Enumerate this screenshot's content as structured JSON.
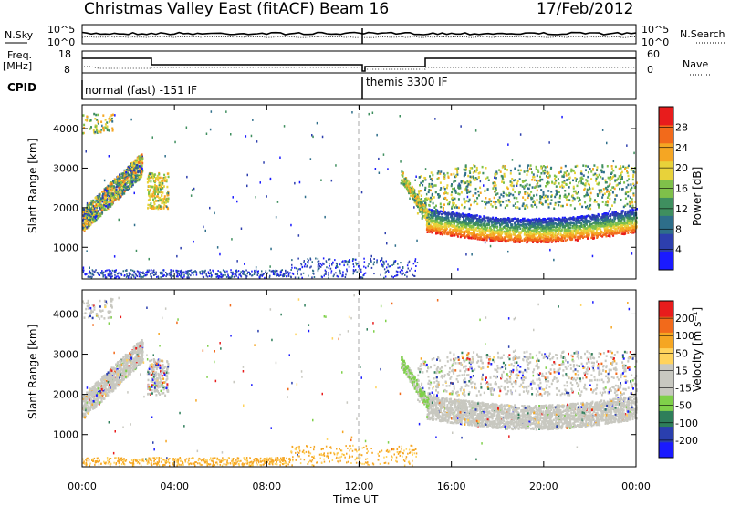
{
  "header": {
    "title": "Christmas Valley East (fitACF)",
    "beam": "Beam 16",
    "date": "17/Feb/2012"
  },
  "strips": {
    "nsky_label": "N.Sky",
    "nsearch_label": "N.Search",
    "nsky_ticks": [
      "10^5",
      "10^0"
    ],
    "nsearch_ticks": [
      "10^5",
      "10^0"
    ],
    "freq_label_1": "Freq.",
    "freq_label_2": "[MHz]",
    "freq_ticks": [
      "18",
      "8"
    ],
    "nave_label": "Nave",
    "nave_ticks": [
      "60",
      "0"
    ],
    "cpid_label": "CPID",
    "cpid_left": "normal (fast) -151 IF",
    "cpid_right": "themis 3300 IF"
  },
  "colors": {
    "power": [
      "#1a1aff",
      "#2d3fae",
      "#2e6e8a",
      "#3f8f5f",
      "#7fc04a",
      "#e8d23a",
      "#f5a623",
      "#f26a1b",
      "#e81c1c"
    ],
    "velocity": [
      "#e81c1c",
      "#f26a1b",
      "#f5a623",
      "#ffd35c",
      "#c8c8c0",
      "#c8c8c0",
      "#7fd04a",
      "#2e7e5a",
      "#2a3fae",
      "#1a1aff"
    ]
  },
  "chart_data": [
    {
      "type": "line",
      "name": "nsky-nsearch",
      "x": [
        "00:00",
        "04:00",
        "08:00",
        "12:00",
        "16:00",
        "20:00",
        "00:00"
      ],
      "ylim_label": [
        "10^0",
        "10^5"
      ]
    },
    {
      "type": "line",
      "name": "freq-nave",
      "freq_range": [
        8,
        18
      ],
      "nave_range": [
        0,
        60
      ]
    },
    {
      "type": "heatmap",
      "name": "power",
      "ylabel": "Slant Range [km]",
      "yticks": [
        1000,
        2000,
        3000,
        4000
      ],
      "ylim": [
        200,
        4600
      ],
      "colorbar_label": "Power [dB]",
      "colorbar_ticks": [
        4,
        8,
        12,
        16,
        20,
        24,
        28
      ]
    },
    {
      "type": "heatmap",
      "name": "velocity",
      "ylabel": "Slant Range [km]",
      "yticks": [
        1000,
        2000,
        3000,
        4000
      ],
      "ylim": [
        200,
        4600
      ],
      "colorbar_label": "Velocity [m s⁻¹]",
      "colorbar_ticks": [
        200,
        100,
        50,
        15,
        -15,
        -50,
        -100,
        -200
      ]
    }
  ],
  "xaxis": {
    "label": "Time UT",
    "ticks": [
      "00:00",
      "04:00",
      "08:00",
      "12:00",
      "16:00",
      "20:00",
      "00:00"
    ]
  }
}
